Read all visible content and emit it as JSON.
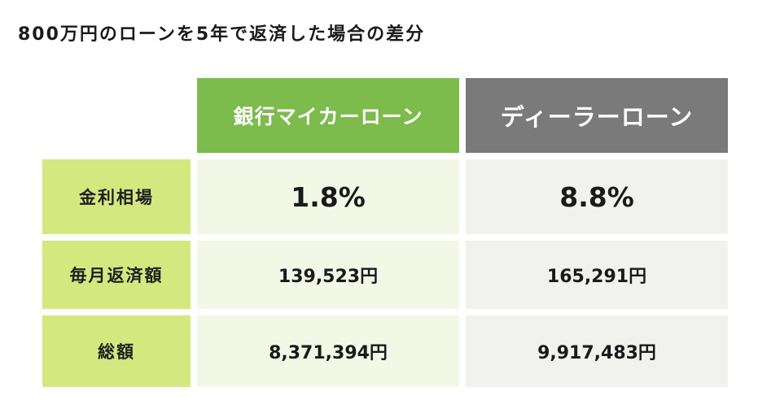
{
  "title": "800万円のローンを5年で返済した場合の差分",
  "columns": {
    "bank": "銀行マイカーローン",
    "dealer": "ディーラーローン"
  },
  "rows": [
    {
      "label": "金利相場",
      "bank": "1.8%",
      "dealer": "8.8%"
    },
    {
      "label": "毎月返済額",
      "bank": "139,523円",
      "dealer": "165,291円"
    },
    {
      "label": "総額",
      "bank": "8,371,394円",
      "dealer": "9,917,483円"
    }
  ],
  "colors": {
    "bank_header": "#7dbb4d",
    "dealer_header": "#7a7a7a",
    "row_label": "#d5e77f",
    "bank_cell": "#f3f8e6",
    "dealer_cell": "#f1f2ee"
  }
}
